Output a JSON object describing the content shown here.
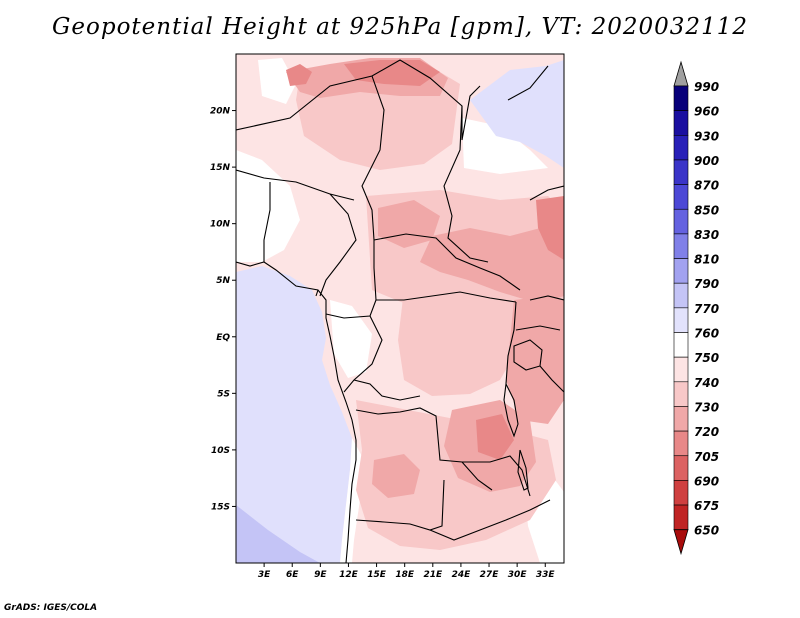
{
  "title": "Geopotential Height at 925hPa [gpm], VT: 2020032112",
  "credit": "GrADS: IGES/COLA",
  "map": {
    "extent": {
      "lon_min": 0,
      "lon_max": 35,
      "lat_min": -20,
      "lat_max": 25
    },
    "lat_ticks": [
      {
        "lat": 20,
        "label": "20N"
      },
      {
        "lat": 15,
        "label": "15N"
      },
      {
        "lat": 10,
        "label": "10N"
      },
      {
        "lat": 5,
        "label": "5N"
      },
      {
        "lat": 0,
        "label": "EQ"
      },
      {
        "lat": -5,
        "label": "5S"
      },
      {
        "lat": -10,
        "label": "10S"
      },
      {
        "lat": -15,
        "label": "15S"
      }
    ],
    "lon_ticks": [
      {
        "lon": 3,
        "label": "3E"
      },
      {
        "lon": 6,
        "label": "6E"
      },
      {
        "lon": 9,
        "label": "9E"
      },
      {
        "lon": 12,
        "label": "12E"
      },
      {
        "lon": 15,
        "label": "15E"
      },
      {
        "lon": 18,
        "label": "18E"
      },
      {
        "lon": 21,
        "label": "21E"
      },
      {
        "lon": 24,
        "label": "24E"
      },
      {
        "lon": 27,
        "label": "27E"
      },
      {
        "lon": 30,
        "label": "30E"
      },
      {
        "lon": 33,
        "label": "33E"
      }
    ]
  },
  "colorbar": {
    "levels": [
      "990",
      "960",
      "930",
      "900",
      "870",
      "850",
      "830",
      "810",
      "790",
      "770",
      "760",
      "750",
      "740",
      "730",
      "720",
      "705",
      "690",
      "675",
      "650"
    ],
    "colors": [
      "#08007a",
      "#1a0fa0",
      "#2820b8",
      "#3a34c8",
      "#4c48d6",
      "#6462e0",
      "#8080e8",
      "#a2a2f0",
      "#c4c4f6",
      "#e2e2fc",
      "#ffffff",
      "#fde4e4",
      "#f8c8c8",
      "#f0a8a8",
      "#e88888",
      "#dc6262",
      "#cf4040",
      "#c02424",
      "#a80c0c"
    ],
    "top_color": "#a0a0a0"
  }
}
